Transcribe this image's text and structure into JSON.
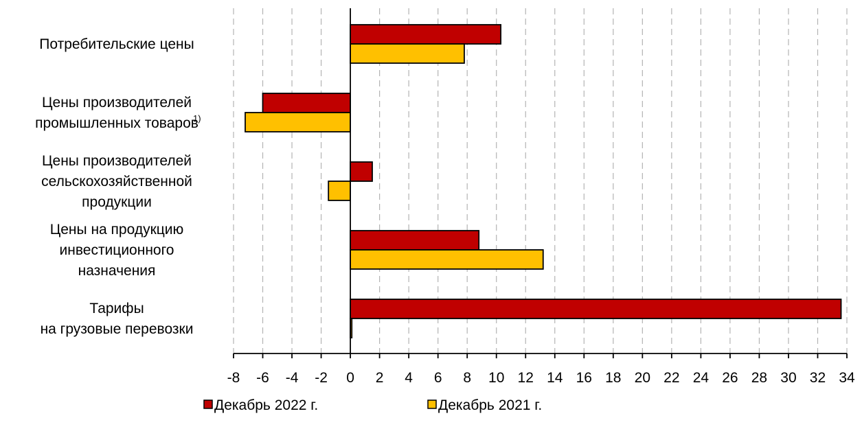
{
  "chart_data": {
    "type": "bar",
    "orientation": "horizontal",
    "categories": [
      {
        "lines": [
          "Потребительские цены"
        ],
        "footnote": ""
      },
      {
        "lines": [
          "Цены производителей",
          "промышленных товаров"
        ],
        "footnote": "1)"
      },
      {
        "lines": [
          "Цены производителей",
          "сельскохозяйственной",
          "продукции"
        ],
        "footnote": ""
      },
      {
        "lines": [
          "Цены на продукцию",
          "инвестиционного",
          "назначения"
        ],
        "footnote": ""
      },
      {
        "lines": [
          "Тарифы",
          "на грузовые перевозки"
        ],
        "footnote": ""
      }
    ],
    "series": [
      {
        "name": "Декабрь 2022 г.",
        "color": "#C00000",
        "values": [
          10.3,
          -6.0,
          1.5,
          8.8,
          33.6
        ]
      },
      {
        "name": "Декабрь 2021 г.",
        "color": "#FFC000",
        "values": [
          7.8,
          -7.2,
          -1.5,
          13.2,
          0.1
        ]
      }
    ],
    "xlim": [
      -8,
      34
    ],
    "xticks": [
      "-8",
      "-6",
      "-4",
      "-2",
      "0",
      "2",
      "4",
      "6",
      "8",
      "10",
      "12",
      "14",
      "16",
      "18",
      "20",
      "22",
      "24",
      "26",
      "28",
      "30",
      "32",
      "34"
    ],
    "grid": "vertical dashed",
    "legend_position": "bottom"
  }
}
